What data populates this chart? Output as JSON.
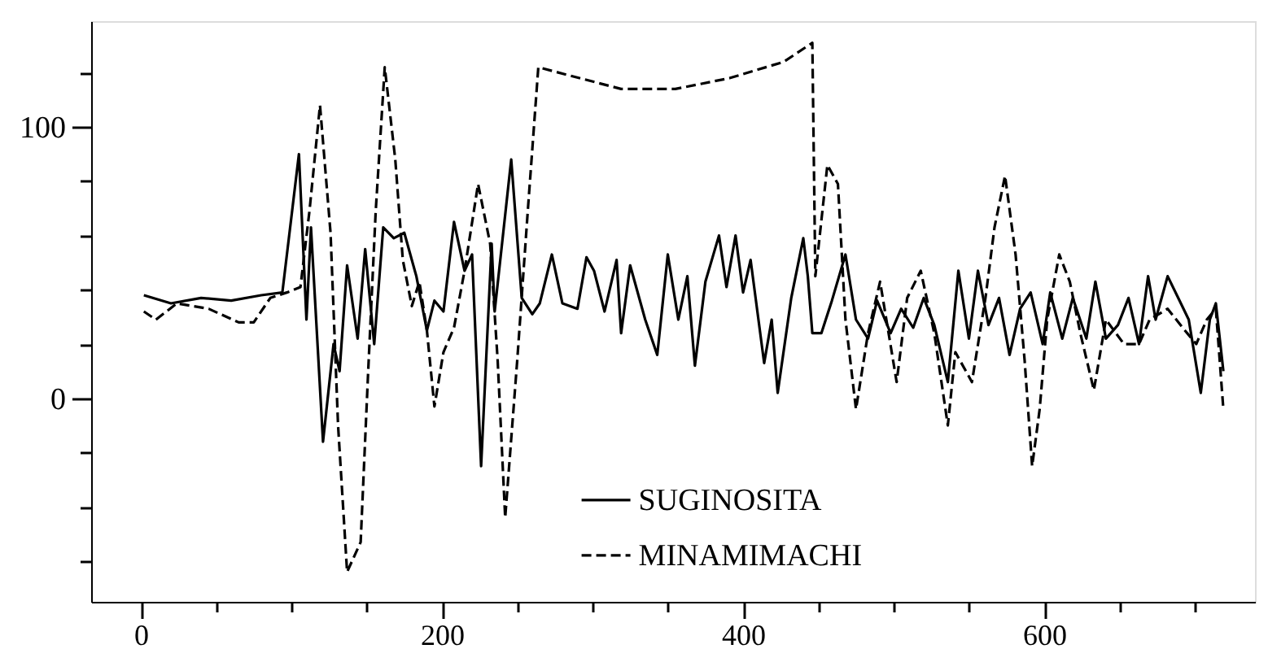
{
  "chart_data": {
    "type": "line",
    "xlim": [
      -33,
      740
    ],
    "ylim": [
      -75,
      139
    ],
    "xticks": [
      0,
      {
        "value": 50,
        "label": null
      },
      {
        "value": 100,
        "label": null
      },
      {
        "value": 150,
        "label": null
      },
      200,
      {
        "value": 250,
        "label": null
      },
      {
        "value": 300,
        "label": null
      },
      {
        "value": 350,
        "label": null
      },
      400,
      {
        "value": 450,
        "label": null
      },
      {
        "value": 500,
        "label": null
      },
      {
        "value": 550,
        "label": null
      },
      600,
      {
        "value": 650,
        "label": null
      },
      {
        "value": 700,
        "label": null
      }
    ],
    "yticks": [
      {
        "value": -60,
        "label": null
      },
      {
        "value": -40,
        "label": null
      },
      {
        "value": -20,
        "label": null
      },
      0,
      {
        "value": 20,
        "label": null
      },
      {
        "value": 40,
        "label": null
      },
      {
        "value": 60,
        "label": null
      },
      {
        "value": 80,
        "label": null
      },
      100,
      {
        "value": 120,
        "label": null
      }
    ],
    "grid": false,
    "legend": "bottom right",
    "marker": "none",
    "series": [
      {
        "name": "SUGINOSITA",
        "color": "#000000",
        "line_style": "solid",
        "x": [
          2,
          20,
          40,
          60,
          80,
          94,
          105,
          110,
          113,
          121,
          128,
          132,
          137,
          144,
          149,
          155,
          161,
          168,
          175,
          183,
          190,
          195,
          201,
          208,
          215,
          220,
          226,
          233,
          235,
          246,
          253,
          260,
          265,
          273,
          280,
          290,
          296,
          301,
          308,
          316,
          319,
          325,
          335,
          343,
          350,
          357,
          363,
          368,
          375,
          384,
          389,
          395,
          400,
          405,
          414,
          419,
          423,
          432,
          440,
          443,
          446,
          452,
          459,
          468,
          475,
          483,
          489,
          498,
          505,
          513,
          520,
          527,
          536,
          543,
          550,
          556,
          563,
          570,
          577,
          584,
          591,
          599,
          604,
          612,
          619,
          628,
          634,
          641,
          649,
          656,
          663,
          669,
          674,
          682,
          689,
          696,
          704,
          710,
          714,
          719
        ],
        "values": [
          38,
          35,
          37,
          36,
          38,
          39,
          90,
          29,
          63,
          -16,
          20,
          10,
          49,
          22,
          55,
          20,
          63,
          59,
          61,
          45,
          25,
          36,
          32,
          65,
          47,
          53,
          -25,
          57,
          32,
          88,
          37,
          31,
          35,
          53,
          35,
          33,
          52,
          47,
          32,
          51,
          24,
          49,
          29,
          16,
          53,
          29,
          45,
          12,
          43,
          60,
          41,
          60,
          39,
          51,
          13,
          29,
          2,
          37,
          59,
          45,
          24,
          24,
          36,
          53,
          29,
          22,
          36,
          24,
          33,
          26,
          37,
          27,
          6,
          47,
          22,
          47,
          27,
          37,
          16,
          33,
          39,
          20,
          39,
          22,
          37,
          22,
          43,
          22,
          27,
          37,
          20,
          45,
          29,
          45,
          37,
          29,
          2,
          29,
          35,
          10
        ]
      },
      {
        "name": "MINAMIMACHI",
        "color": "#000000",
        "line_style": "dashed",
        "x": [
          2,
          10,
          24,
          45,
          65,
          75,
          86,
          97,
          106,
          112,
          119,
          126,
          131,
          137,
          146,
          151,
          156,
          162,
          169,
          174,
          180,
          185,
          190,
          195,
          201,
          208,
          215,
          224,
          232,
          237,
          242,
          250,
          257,
          264,
          319,
          355,
          391,
          427,
          446,
          448,
          456,
          463,
          468,
          475,
          483,
          491,
          502,
          509,
          518,
          527,
          536,
          541,
          552,
          561,
          567,
          574,
          581,
          587,
          592,
          597,
          602,
          610,
          617,
          624,
          633,
          641,
          653,
          663,
          670,
          682,
          692,
          701,
          708,
          714,
          719
        ],
        "values": [
          32,
          29,
          35,
          33,
          28,
          28,
          37,
          39,
          41,
          69,
          108,
          61,
          -10,
          -64,
          -53,
          10,
          69,
          122,
          88,
          51,
          34,
          43,
          25,
          -3,
          17,
          26,
          47,
          79,
          57,
          14,
          -44,
          14,
          69,
          122,
          114,
          114,
          118,
          124,
          131,
          45,
          86,
          79,
          29,
          -4,
          24,
          43,
          6,
          37,
          47,
          24,
          -10,
          17,
          6,
          37,
          63,
          82,
          53,
          14,
          -25,
          -4,
          29,
          53,
          43,
          24,
          3,
          29,
          20,
          20,
          29,
          33,
          26,
          20,
          29,
          33,
          -4
        ]
      }
    ]
  }
}
